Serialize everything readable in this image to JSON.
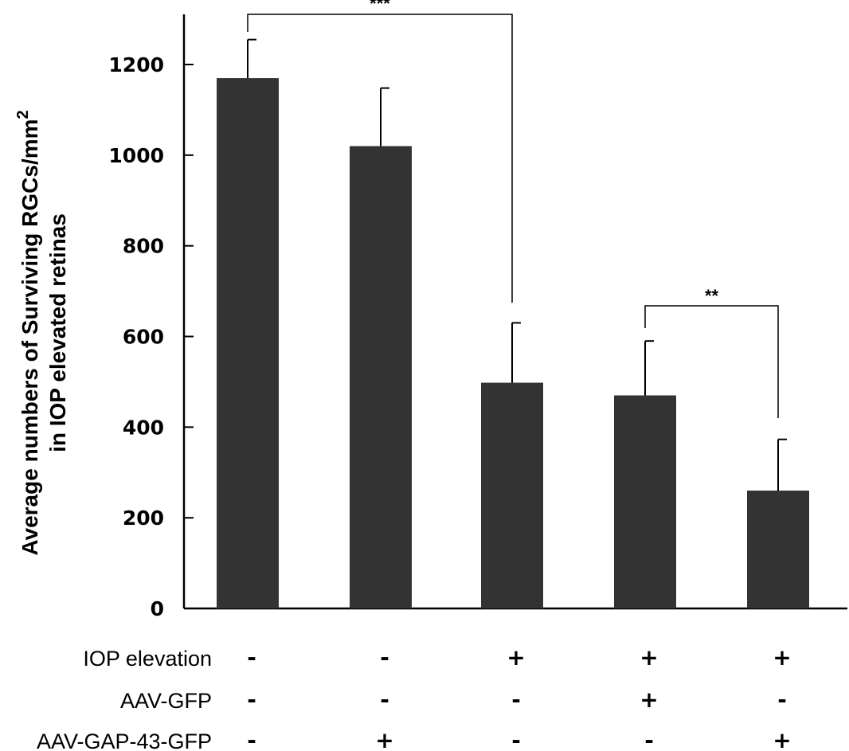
{
  "chart_data": {
    "type": "bar",
    "ylabel_line1": "Average numbers of Surviving RGCs/mm",
    "ylabel_sup": "2",
    "ylabel_line2": "in IOP elevated retinas",
    "ylim": [
      0,
      1300
    ],
    "yticks": [
      0,
      200,
      400,
      600,
      800,
      1000,
      1200
    ],
    "values": [
      1170,
      1020,
      498,
      470,
      260
    ],
    "errors": [
      85,
      128,
      132,
      120,
      113
    ],
    "bar_color": "#333333",
    "grid": false,
    "significance": [
      {
        "from": 0,
        "to": 2,
        "label": "***"
      },
      {
        "from": 3,
        "to": 4,
        "label": "**"
      }
    ],
    "conditions": [
      {
        "label": "IOP elevation",
        "values": [
          "-",
          "-",
          "+",
          "+",
          "+"
        ]
      },
      {
        "label": "AAV-GFP",
        "values": [
          "-",
          "-",
          "-",
          "+",
          "-"
        ]
      },
      {
        "label": "AAV-GAP-43-GFP",
        "values": [
          "-",
          "+",
          "-",
          "-",
          "+"
        ]
      }
    ]
  }
}
